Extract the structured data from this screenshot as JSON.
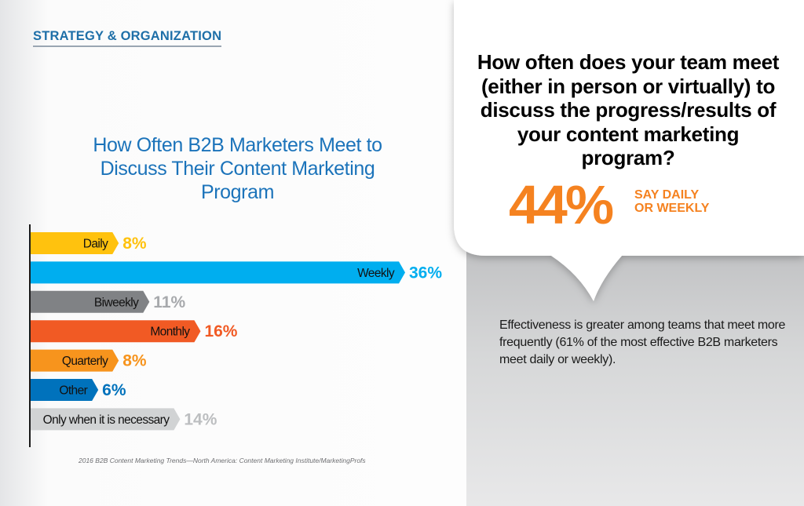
{
  "header": {
    "section_label": "STRATEGY & ORGANIZATION"
  },
  "chart_data": {
    "type": "bar",
    "orientation": "horizontal",
    "title": "How Often B2B Marketers Meet to Discuss Their Content Marketing Program",
    "categories": [
      "Daily",
      "Weekly",
      "Biweekly",
      "Monthly",
      "Quarterly",
      "Other",
      "Only when it is necessary"
    ],
    "values": [
      8,
      36,
      11,
      16,
      8,
      6,
      14
    ],
    "value_labels": [
      "8%",
      "36%",
      "11%",
      "16%",
      "8%",
      "6%",
      "14%"
    ],
    "colors": [
      "#ffc20e",
      "#00aeef",
      "#808285",
      "#f15a24",
      "#f7941d",
      "#0072bc",
      "#d1d3d4"
    ],
    "label_colors": [
      "#ffc20e",
      "#00aeef",
      "#a7a9ac",
      "#f15a24",
      "#f7941d",
      "#0072bc",
      "#bcbec0"
    ],
    "xlim": [
      0,
      36
    ],
    "grid": false,
    "legend": "none"
  },
  "source": "2016 B2B Content Marketing Trends—North America: Content Marketing Institute/MarketingProfs",
  "callout": {
    "question": "How often does your team meet (either in person or virtually) to discuss the progress/results of your content marketing program?",
    "stat_value": "44%",
    "stat_caption_line1": "SAY DAILY",
    "stat_caption_line2": "OR WEEKLY",
    "accent_color": "#f58220"
  },
  "effectiveness_note": "Effectiveness is greater among teams that meet more frequently (61% of the most effective B2B marketers meet daily or weekly)."
}
